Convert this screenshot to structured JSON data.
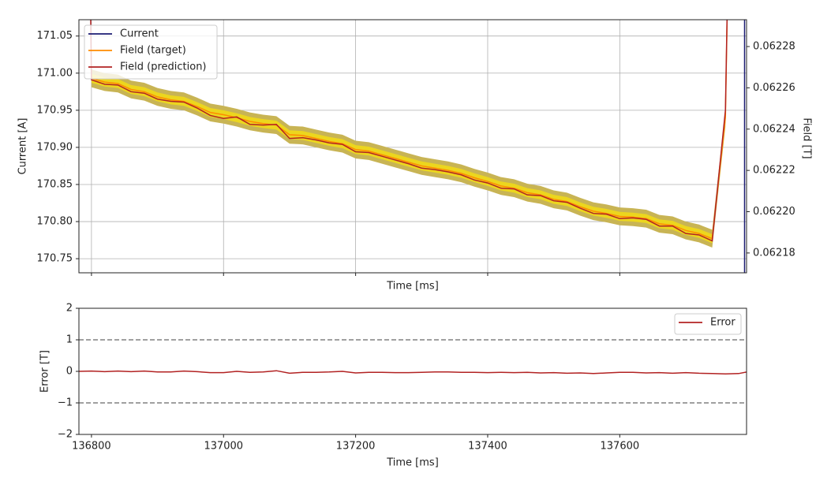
{
  "chart_data": [
    {
      "type": "line",
      "xlabel": "Time [ms]",
      "ylabel": "Current [A]",
      "y2label": "Field [T]",
      "xlim": [
        136781,
        137792
      ],
      "ylim": [
        170.731,
        171.072
      ],
      "y2lim": [
        0.0621704,
        0.062293
      ],
      "xticks": [
        136800,
        137000,
        137200,
        137400,
        137600
      ],
      "show_xtick_labels": false,
      "yticks": [
        170.75,
        {
          "value": 170.8,
          "label": "170.80"
        },
        170.85,
        {
          "value": 170.9,
          "label": "170.90"
        },
        170.95,
        {
          "value": 171,
          "label": "171.00"
        },
        171.05
      ],
      "y2ticks": [
        0.06218,
        {
          "value": 0.0622,
          "label": "0.06220"
        },
        0.06222,
        0.06224,
        0.06226,
        0.06228
      ],
      "grid": true,
      "legend": "upper left",
      "bands": [
        {
          "color": "#c8b454",
          "halfwidth": 0.012
        },
        {
          "color": "#ecd61e",
          "halfwidth": 0.006
        }
      ],
      "series": [
        {
          "name": "Current",
          "color": "#1b1b72",
          "axis": "y2",
          "x": [
            137789,
            137789
          ],
          "values": [
            0.06215,
            0.0623
          ]
        },
        {
          "name": "Field (target)",
          "color": "#ff8c00",
          "x": [
            136800,
            136820,
            136840,
            136860,
            136880,
            136900,
            136920,
            136940,
            136960,
            136980,
            137000,
            137020,
            137040,
            137060,
            137080,
            137100,
            137120,
            137140,
            137160,
            137180,
            137200,
            137220,
            137240,
            137260,
            137280,
            137300,
            137320,
            137340,
            137360,
            137380,
            137400,
            137420,
            137440,
            137460,
            137480,
            137500,
            137520,
            137540,
            137560,
            137580,
            137600,
            137620,
            137640,
            137660,
            137680,
            137700,
            137720,
            137740,
            137760,
            137765
          ],
          "values": [
            170.993,
            170.988,
            170.986,
            170.978,
            170.975,
            170.968,
            170.964,
            170.962,
            170.955,
            170.947,
            170.944,
            170.94,
            170.935,
            170.932,
            170.93,
            170.917,
            170.916,
            170.912,
            170.908,
            170.905,
            170.897,
            170.895,
            170.89,
            170.885,
            170.88,
            170.875,
            170.872,
            170.869,
            170.865,
            170.859,
            170.854,
            170.848,
            170.845,
            170.839,
            170.836,
            170.83,
            170.827,
            170.82,
            170.814,
            170.811,
            170.807,
            170.806,
            170.804,
            170.797,
            170.795,
            170.788,
            170.784,
            170.777,
            170.94,
            171.2
          ]
        },
        {
          "name": "Field (prediction)",
          "color": "#b22222",
          "x": [
            136797,
            136800,
            136820,
            136840,
            136860,
            136880,
            136900,
            136920,
            136940,
            136960,
            136980,
            137000,
            137020,
            137040,
            137060,
            137080,
            137100,
            137120,
            137140,
            137160,
            137180,
            137200,
            137220,
            137240,
            137260,
            137280,
            137300,
            137320,
            137340,
            137360,
            137380,
            137400,
            137420,
            137440,
            137460,
            137480,
            137500,
            137520,
            137540,
            137560,
            137580,
            137600,
            137620,
            137640,
            137660,
            137680,
            137700,
            137720,
            137740,
            137760,
            137765
          ],
          "values": [
            171.2,
            170.991,
            170.985,
            170.984,
            170.975,
            170.973,
            170.965,
            170.962,
            170.961,
            170.953,
            170.943,
            170.939,
            170.941,
            170.931,
            170.93,
            170.931,
            170.912,
            170.913,
            170.91,
            170.906,
            170.904,
            170.894,
            170.893,
            170.888,
            170.883,
            170.878,
            170.872,
            170.87,
            170.867,
            170.863,
            170.856,
            170.852,
            170.845,
            170.844,
            170.836,
            170.835,
            170.828,
            170.826,
            170.818,
            170.811,
            170.81,
            170.804,
            170.805,
            170.803,
            170.794,
            170.794,
            170.784,
            170.782,
            170.774,
            170.95,
            171.2
          ]
        }
      ]
    },
    {
      "type": "line",
      "xlabel": "Time [ms]",
      "ylabel": "Error [T]",
      "xlim": [
        136781,
        137792
      ],
      "ylim": [
        -2,
        2
      ],
      "xticks": [
        136800,
        137000,
        137200,
        137400,
        137600
      ],
      "show_xtick_labels": true,
      "yticks": [
        {
          "value": -2,
          "label": "−2"
        },
        {
          "value": -1,
          "label": "−1"
        },
        0,
        1,
        2
      ],
      "grid": false,
      "legend": "upper right",
      "hlines": [
        1,
        -1
      ],
      "hline_color": "#808080",
      "series": [
        {
          "name": "Error",
          "color": "#b22222",
          "x": [
            136780,
            136800,
            136820,
            136840,
            136860,
            136880,
            136900,
            136920,
            136940,
            136960,
            136980,
            137000,
            137020,
            137040,
            137060,
            137080,
            137100,
            137120,
            137140,
            137160,
            137180,
            137200,
            137220,
            137240,
            137260,
            137280,
            137300,
            137320,
            137340,
            137360,
            137380,
            137400,
            137420,
            137440,
            137460,
            137480,
            137500,
            137520,
            137540,
            137560,
            137580,
            137600,
            137620,
            137640,
            137660,
            137680,
            137700,
            137720,
            137740,
            137760,
            137780,
            137792
          ],
          "values": [
            0,
            0.01,
            -0.01,
            0.01,
            -0.01,
            0.01,
            -0.02,
            -0.02,
            0.01,
            -0.01,
            -0.04,
            -0.04,
            0,
            -0.03,
            -0.02,
            0.02,
            -0.06,
            -0.03,
            -0.03,
            -0.02,
            0,
            -0.05,
            -0.03,
            -0.03,
            -0.04,
            -0.04,
            -0.03,
            -0.02,
            -0.02,
            -0.03,
            -0.03,
            -0.04,
            -0.03,
            -0.04,
            -0.03,
            -0.05,
            -0.04,
            -0.06,
            -0.05,
            -0.07,
            -0.05,
            -0.03,
            -0.03,
            -0.05,
            -0.04,
            -0.06,
            -0.04,
            -0.06,
            -0.07,
            -0.08,
            -0.07,
            -0.02
          ]
        }
      ]
    }
  ]
}
